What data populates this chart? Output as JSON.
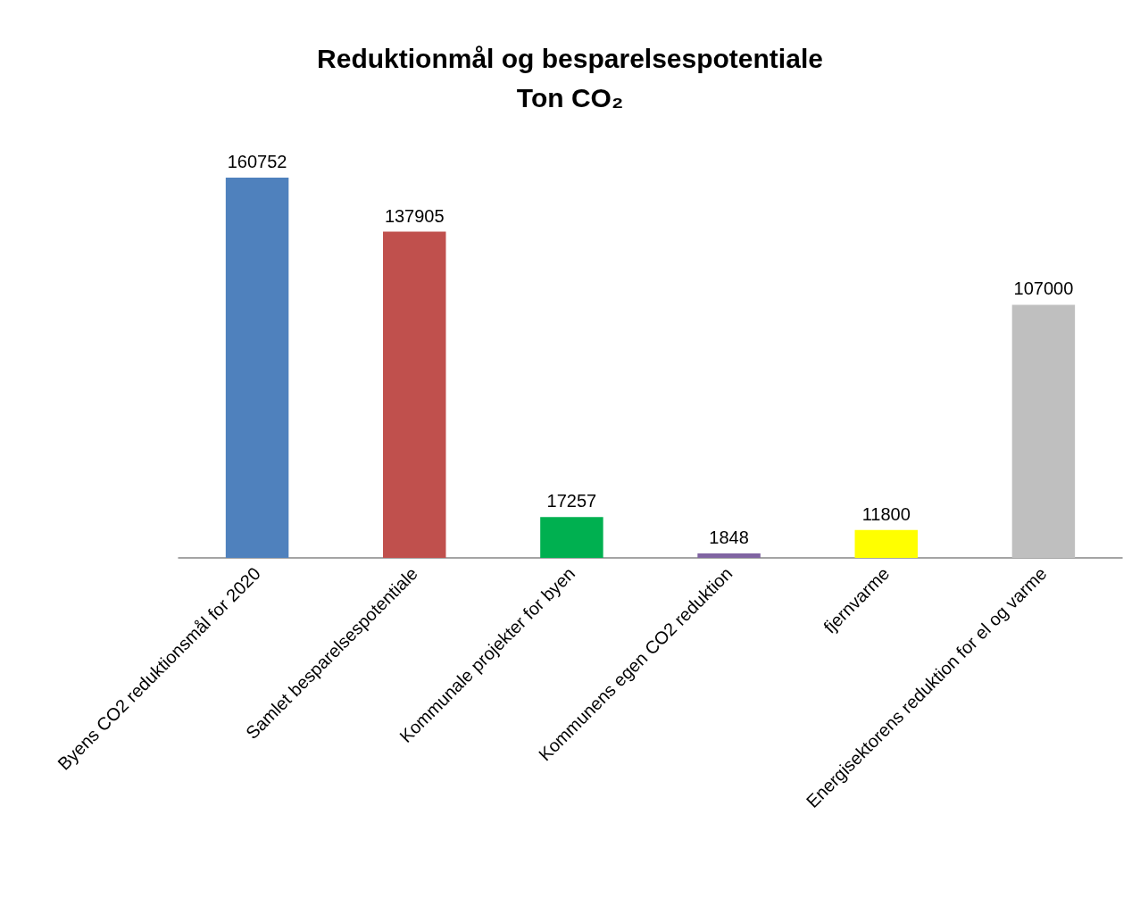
{
  "chart_data": {
    "type": "bar",
    "title": "Reduktionmål og besparelsespotentiale\nTon CO₂",
    "categories": [
      "Byens CO2 reduktionsmål for 2020",
      "Samlet besparelsespotentiale",
      "Kommunale projekter for byen",
      "Kommunens egen CO2 reduktion",
      "fjernvarme",
      "Energisektorens reduktion for el og varme"
    ],
    "values": [
      160752,
      137905,
      17257,
      1848,
      11800,
      107000
    ],
    "colors": [
      "#4f81bd",
      "#c0504d",
      "#00b050",
      "#8064a2",
      "#ffff00",
      "#bfbfbf"
    ],
    "data_labels": true,
    "tick_labels": "x"
  }
}
